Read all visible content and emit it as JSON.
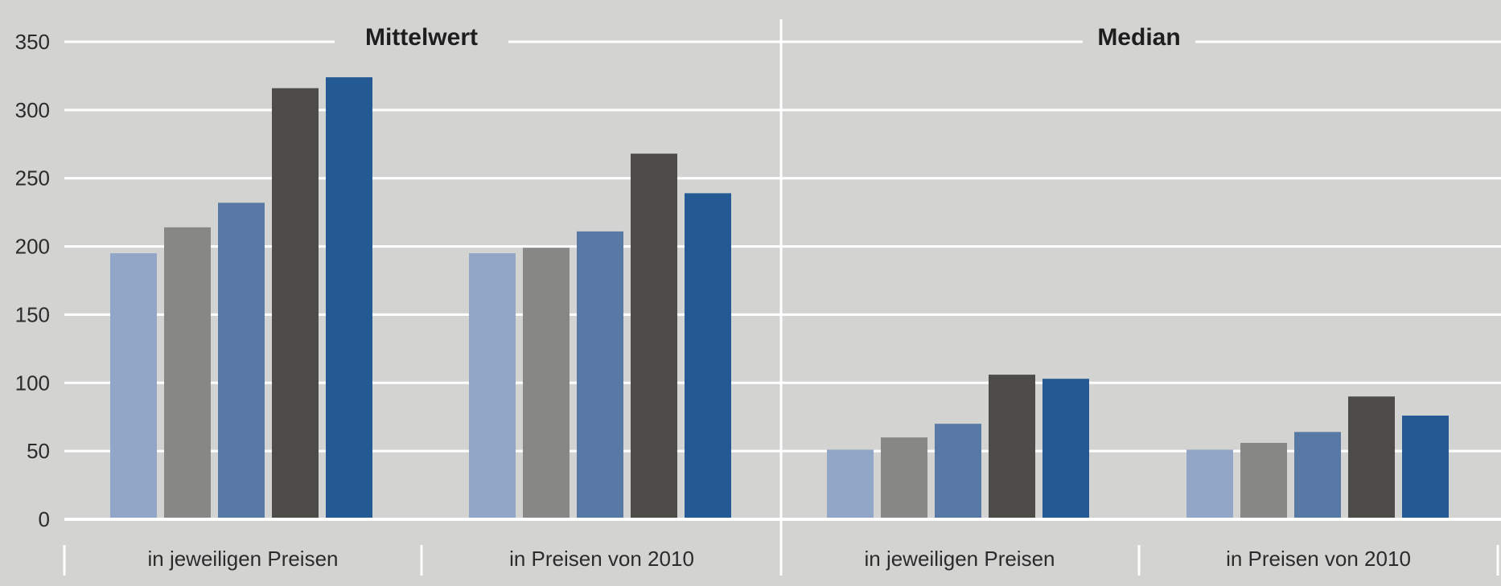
{
  "chart_data": {
    "type": "bar",
    "ylim": [
      0,
      350
    ],
    "yticks": [
      0,
      50,
      100,
      150,
      200,
      250,
      300,
      350
    ],
    "grid": true,
    "colors": [
      "#92a7c7",
      "#878785",
      "#5878a6",
      "#4d4c48",
      "#245a93"
    ],
    "panels": [
      {
        "title": "Mittelwert",
        "groups": [
          {
            "label": "in jeweiligen Preisen",
            "values": [
              195,
              214,
              232,
              316,
              324
            ]
          },
          {
            "label": "in Preisen von 2010",
            "values": [
              195,
              199,
              211,
              268,
              239
            ]
          }
        ]
      },
      {
        "title": "Median",
        "groups": [
          {
            "label": "in jeweiligen Preisen",
            "values": [
              51,
              60,
              70,
              106,
              103
            ]
          },
          {
            "label": "in Preisen von 2010",
            "values": [
              51,
              56,
              64,
              90,
              76
            ]
          }
        ]
      }
    ]
  }
}
